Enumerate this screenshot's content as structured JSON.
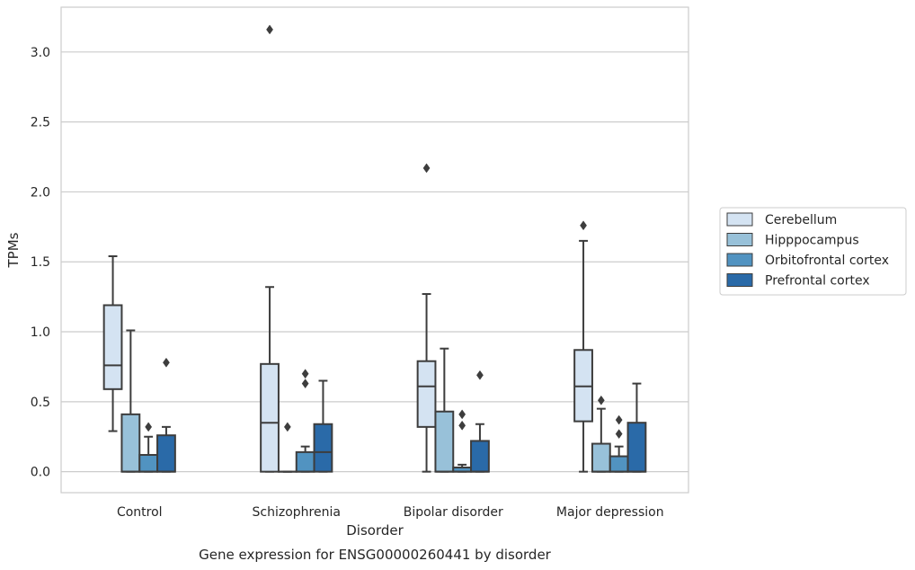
{
  "chart_data": {
    "type": "box",
    "title": "",
    "caption": "Gene expression for ENSG00000260441 by disorder",
    "xlabel": "Disorder",
    "ylabel": "TPMs",
    "ylim": [
      -0.15,
      3.32
    ],
    "yticks": [
      "0.0",
      "0.5",
      "1.0",
      "1.5",
      "2.0",
      "2.5",
      "3.0"
    ],
    "grid": "horizontal",
    "legend_position": "right",
    "categories": [
      "Control",
      "Schizophrenia",
      "Bipolar disorder",
      "Major depression"
    ],
    "series": [
      {
        "name": "Cerebellum",
        "color": "#d4e3f2",
        "boxes": [
          {
            "whislo": 0.29,
            "q1": 0.59,
            "med": 0.76,
            "q3": 1.19,
            "whishi": 1.54,
            "fliers": []
          },
          {
            "whislo": 0.0,
            "q1": 0.0,
            "med": 0.35,
            "q3": 0.77,
            "whishi": 1.32,
            "fliers": [
              3.16
            ]
          },
          {
            "whislo": 0.0,
            "q1": 0.32,
            "med": 0.61,
            "q3": 0.79,
            "whishi": 1.27,
            "fliers": [
              2.17
            ]
          },
          {
            "whislo": 0.0,
            "q1": 0.36,
            "med": 0.61,
            "q3": 0.87,
            "whishi": 1.65,
            "fliers": [
              1.76
            ]
          }
        ]
      },
      {
        "name": "Hipppocampus",
        "color": "#98c1d9",
        "boxes": [
          {
            "whislo": 0.0,
            "q1": 0.0,
            "med": 0.0,
            "q3": 0.41,
            "whishi": 1.01,
            "fliers": []
          },
          {
            "whislo": 0.0,
            "q1": 0.0,
            "med": 0.0,
            "q3": 0.0,
            "whishi": 0.0,
            "fliers": [
              0.32
            ]
          },
          {
            "whislo": 0.0,
            "q1": 0.0,
            "med": 0.0,
            "q3": 0.43,
            "whishi": 0.88,
            "fliers": []
          },
          {
            "whislo": 0.0,
            "q1": 0.0,
            "med": 0.0,
            "q3": 0.2,
            "whishi": 0.45,
            "fliers": [
              0.51
            ]
          }
        ]
      },
      {
        "name": "Orbitofrontal cortex",
        "color": "#5193c1",
        "boxes": [
          {
            "whislo": 0.0,
            "q1": 0.0,
            "med": 0.0,
            "q3": 0.12,
            "whishi": 0.25,
            "fliers": [
              0.32
            ]
          },
          {
            "whislo": 0.0,
            "q1": 0.0,
            "med": 0.0,
            "q3": 0.14,
            "whishi": 0.18,
            "fliers": [
              0.63,
              0.7
            ]
          },
          {
            "whislo": 0.0,
            "q1": 0.0,
            "med": 0.0,
            "q3": 0.03,
            "whishi": 0.05,
            "fliers": [
              0.33,
              0.41
            ]
          },
          {
            "whislo": 0.0,
            "q1": 0.0,
            "med": 0.0,
            "q3": 0.11,
            "whishi": 0.18,
            "fliers": [
              0.27,
              0.37
            ]
          }
        ]
      },
      {
        "name": "Prefrontal cortex",
        "color": "#2a6aa8",
        "boxes": [
          {
            "whislo": 0.0,
            "q1": 0.0,
            "med": 0.0,
            "q3": 0.26,
            "whishi": 0.32,
            "fliers": [
              0.78
            ]
          },
          {
            "whislo": 0.0,
            "q1": 0.0,
            "med": 0.14,
            "q3": 0.34,
            "whishi": 0.65,
            "fliers": []
          },
          {
            "whislo": 0.0,
            "q1": 0.0,
            "med": 0.0,
            "q3": 0.22,
            "whishi": 0.34,
            "fliers": [
              0.69
            ]
          },
          {
            "whislo": 0.0,
            "q1": 0.0,
            "med": 0.0,
            "q3": 0.35,
            "whishi": 0.63,
            "fliers": []
          }
        ]
      }
    ]
  }
}
